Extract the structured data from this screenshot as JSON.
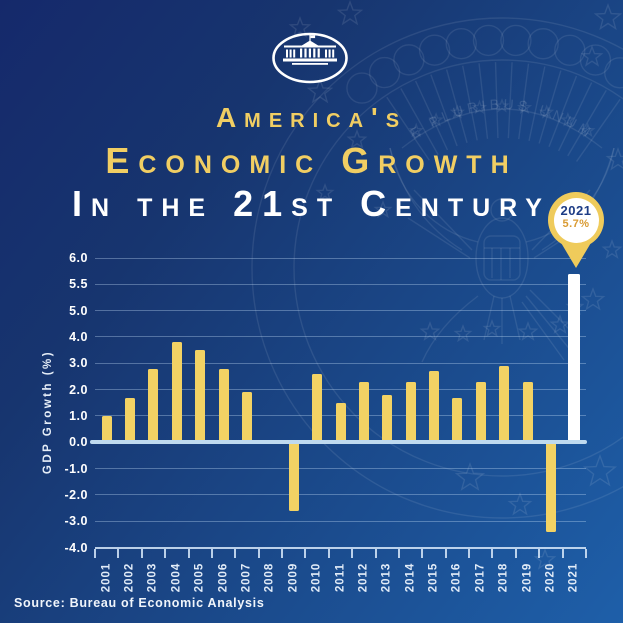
{
  "title": {
    "line1": "America's",
    "line2": "Economic Growth",
    "line3": "In the 21st Century"
  },
  "callout": {
    "year": "2021",
    "value": "5.7%"
  },
  "source_note": "Source: Bureau of Economic Analysis",
  "watermark": {
    "motto": "E PLURIBUS UNUM"
  },
  "colors": {
    "background_top_left": "#15296B",
    "background_bottom_right": "#1E5FA9",
    "title_gold": "#F1CE63",
    "title_white": "#FFFFFF",
    "bar_gold": "#F2D264",
    "highlight_bar_white": "#FFFFFF",
    "zero_axis_line": "#BFDAEF",
    "pin_gold": "#EFCB5B",
    "pin_year_navy": "#1D3C85",
    "pin_value_amber": "#D99B33"
  },
  "chart_data": {
    "type": "bar",
    "title": "America's Economic Growth In the 21st Century",
    "xlabel": "",
    "ylabel": "GDP Growth (%)",
    "categories": [
      "2001",
      "2002",
      "2003",
      "2004",
      "2005",
      "2006",
      "2007",
      "2008",
      "2009",
      "2010",
      "2011",
      "2012",
      "2013",
      "2014",
      "2015",
      "2016",
      "2017",
      "2018",
      "2019",
      "2020",
      "2021"
    ],
    "values": [
      1.0,
      1.7,
      2.8,
      3.8,
      3.5,
      2.8,
      1.9,
      0.1,
      -2.6,
      2.6,
      1.5,
      2.3,
      1.8,
      2.3,
      2.7,
      1.7,
      2.3,
      2.9,
      2.3,
      -3.4,
      5.7
    ],
    "highlight": {
      "category": "2021",
      "value_label": "5.7%"
    },
    "y_tick_labels": [
      "6.0",
      "5.5",
      "5.0",
      "4.0",
      "3.0",
      "2.0",
      "1.0",
      "0.0",
      "-1.0",
      "-2.0",
      "-3.0",
      "-4.0"
    ],
    "ylim": [
      -4.0,
      6.0
    ],
    "y_scale_note": "gridlines evenly spaced; 0.5 per step above 5.0, 1.0 per step below",
    "grid": true,
    "legend": false
  }
}
